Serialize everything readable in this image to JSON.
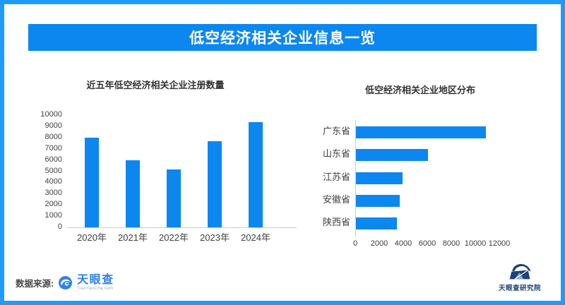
{
  "page": {
    "banner_title": "低空经济相关企业信息一览"
  },
  "chart_data": [
    {
      "type": "bar",
      "orientation": "vertical",
      "title": "近五年低空经济相关企业注册数量",
      "categories": [
        "2020年",
        "2021年",
        "2022年",
        "2023年",
        "2024年"
      ],
      "values": [
        8000,
        5950,
        5150,
        7650,
        9400
      ],
      "ylim": [
        0,
        10000
      ],
      "yticks": [
        0,
        1000,
        2000,
        3000,
        4000,
        5000,
        6000,
        7000,
        8000,
        9000,
        10000
      ],
      "xlabel": "",
      "ylabel": "",
      "grid": false,
      "legend": "none",
      "bar_color": "#0d87f0"
    },
    {
      "type": "bar",
      "orientation": "horizontal",
      "title": "低空经济相关企业地区分布",
      "categories": [
        "广东省",
        "山东省",
        "江苏省",
        "安徽省",
        "陕西省"
      ],
      "values": [
        10800,
        6000,
        3900,
        3650,
        3400
      ],
      "xlim": [
        0,
        12000
      ],
      "xticks": [
        0,
        2000,
        4000,
        6000,
        8000,
        10000,
        12000
      ],
      "xlabel": "",
      "ylabel": "",
      "grid": false,
      "legend": "none",
      "bar_color": "#0d87f0"
    }
  ],
  "footer": {
    "source_label": "数据来源:",
    "source_logo_text": "天眼查",
    "source_logo_subtext": "TianYanCha.com",
    "institute_logo_text": "天眼查研究院"
  },
  "colors": {
    "banner_blue": "#0d87f0",
    "border_blue": "#1e9cf8",
    "bar_blue": "#0d87f0",
    "axis_line": "#cccccc",
    "axis_text": "#404040",
    "title_text": "#333333",
    "tyc_logo_blue": "#2e7fe3",
    "institute_navy": "#1c4278"
  }
}
